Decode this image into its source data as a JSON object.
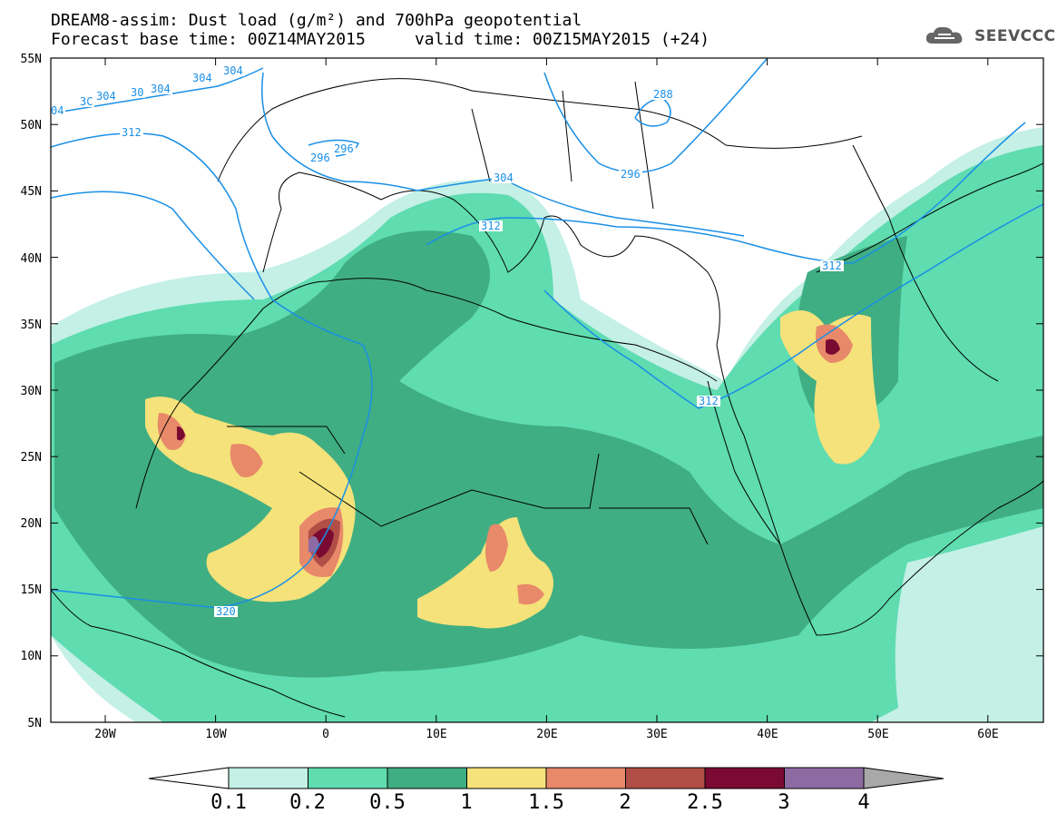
{
  "header": {
    "line1": "DREAM8-assim: Dust load (g/m²) and 700hPa geopotential",
    "line2": "Forecast base time: 00Z14MAY2015     valid time: 00Z15MAY2015 (+24)"
  },
  "logo": {
    "text": "SEEVCCC",
    "icon": "cloud-logo-icon"
  },
  "axes": {
    "lat_labels": [
      "55N",
      "50N",
      "45N",
      "40N",
      "35N",
      "30N",
      "25N",
      "20N",
      "15N",
      "10N",
      "5N"
    ],
    "lon_labels": [
      "20W",
      "10W",
      "0",
      "10E",
      "20E",
      "30E",
      "40E",
      "50E",
      "60E"
    ]
  },
  "contour_labels": [
    "04",
    "3C",
    "304",
    "30",
    "304",
    "304",
    "304",
    "312",
    "296",
    "296",
    "288",
    "296",
    "304",
    "312",
    "312",
    "312",
    "320"
  ],
  "colorbar": {
    "ticks": [
      "0.1",
      "0.2",
      "0.5",
      "1",
      "1.5",
      "2",
      "2.5",
      "3",
      "4"
    ],
    "colors": [
      "#c4f0e6",
      "#5fdcb0",
      "#3fae83",
      "#f5e27a",
      "#e8896a",
      "#b14e45",
      "#7a0a32",
      "#8e6aa3"
    ],
    "under_color": "#ffffff",
    "over_color": "#a8a8a8"
  },
  "colors": {
    "contour": "#1a8fe6",
    "border": "#000000"
  }
}
